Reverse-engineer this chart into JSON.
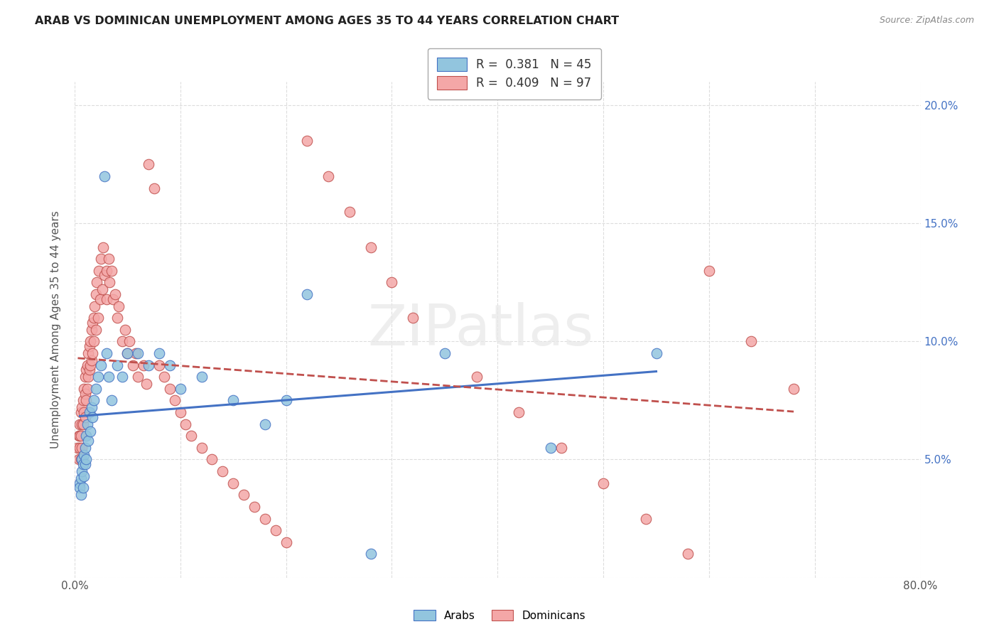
{
  "title": "ARAB VS DOMINICAN UNEMPLOYMENT AMONG AGES 35 TO 44 YEARS CORRELATION CHART",
  "source": "Source: ZipAtlas.com",
  "ylabel": "Unemployment Among Ages 35 to 44 years",
  "xlim": [
    0,
    0.8
  ],
  "ylim": [
    0,
    0.21
  ],
  "xtick_positions": [
    0.0,
    0.1,
    0.2,
    0.3,
    0.4,
    0.5,
    0.6,
    0.7,
    0.8
  ],
  "xticklabels": [
    "0.0%",
    "",
    "",
    "",
    "",
    "",
    "",
    "",
    "80.0%"
  ],
  "ytick_positions": [
    0.0,
    0.05,
    0.1,
    0.15,
    0.2
  ],
  "yticklabels_right": [
    "",
    "5.0%",
    "10.0%",
    "15.0%",
    "20.0%"
  ],
  "arab_color": "#92c5de",
  "arab_edge_color": "#4472c4",
  "dominican_color": "#f4a7a7",
  "dominican_edge_color": "#c0504d",
  "arab_line_color": "#4472c4",
  "dominican_line_color": "#c0504d",
  "arab_R": 0.381,
  "arab_N": 45,
  "dominican_R": 0.409,
  "dominican_N": 97,
  "legend_labels": [
    "Arabs",
    "Dominicans"
  ],
  "watermark": "ZIPatlas",
  "arab_x": [
    0.005,
    0.005,
    0.006,
    0.006,
    0.007,
    0.007,
    0.008,
    0.008,
    0.009,
    0.009,
    0.01,
    0.01,
    0.011,
    0.011,
    0.012,
    0.013,
    0.014,
    0.015,
    0.016,
    0.017,
    0.018,
    0.02,
    0.022,
    0.025,
    0.028,
    0.03,
    0.032,
    0.035,
    0.04,
    0.045,
    0.05,
    0.06,
    0.07,
    0.08,
    0.09,
    0.1,
    0.12,
    0.15,
    0.18,
    0.2,
    0.22,
    0.28,
    0.35,
    0.45,
    0.55
  ],
  "arab_y": [
    0.04,
    0.038,
    0.042,
    0.035,
    0.05,
    0.045,
    0.048,
    0.038,
    0.052,
    0.043,
    0.055,
    0.048,
    0.06,
    0.05,
    0.065,
    0.058,
    0.07,
    0.062,
    0.072,
    0.068,
    0.075,
    0.08,
    0.085,
    0.09,
    0.17,
    0.095,
    0.085,
    0.075,
    0.09,
    0.085,
    0.095,
    0.095,
    0.09,
    0.095,
    0.09,
    0.08,
    0.085,
    0.075,
    0.065,
    0.075,
    0.12,
    0.01,
    0.095,
    0.055,
    0.095
  ],
  "dominican_x": [
    0.003,
    0.004,
    0.004,
    0.005,
    0.005,
    0.005,
    0.006,
    0.006,
    0.006,
    0.007,
    0.007,
    0.007,
    0.008,
    0.008,
    0.009,
    0.009,
    0.01,
    0.01,
    0.01,
    0.011,
    0.011,
    0.012,
    0.012,
    0.013,
    0.013,
    0.014,
    0.014,
    0.015,
    0.015,
    0.016,
    0.016,
    0.017,
    0.017,
    0.018,
    0.018,
    0.019,
    0.02,
    0.02,
    0.021,
    0.022,
    0.023,
    0.024,
    0.025,
    0.026,
    0.027,
    0.028,
    0.03,
    0.03,
    0.032,
    0.033,
    0.035,
    0.036,
    0.038,
    0.04,
    0.042,
    0.045,
    0.048,
    0.05,
    0.052,
    0.055,
    0.058,
    0.06,
    0.065,
    0.068,
    0.07,
    0.075,
    0.08,
    0.085,
    0.09,
    0.095,
    0.1,
    0.105,
    0.11,
    0.12,
    0.13,
    0.14,
    0.15,
    0.16,
    0.17,
    0.18,
    0.19,
    0.2,
    0.22,
    0.24,
    0.26,
    0.28,
    0.3,
    0.32,
    0.38,
    0.42,
    0.46,
    0.5,
    0.54,
    0.58,
    0.6,
    0.64,
    0.68
  ],
  "dominican_y": [
    0.055,
    0.06,
    0.05,
    0.065,
    0.06,
    0.055,
    0.07,
    0.06,
    0.05,
    0.072,
    0.065,
    0.055,
    0.075,
    0.065,
    0.08,
    0.07,
    0.085,
    0.078,
    0.068,
    0.088,
    0.075,
    0.09,
    0.08,
    0.095,
    0.085,
    0.098,
    0.088,
    0.1,
    0.09,
    0.105,
    0.092,
    0.108,
    0.095,
    0.11,
    0.1,
    0.115,
    0.12,
    0.105,
    0.125,
    0.11,
    0.13,
    0.118,
    0.135,
    0.122,
    0.14,
    0.128,
    0.13,
    0.118,
    0.135,
    0.125,
    0.13,
    0.118,
    0.12,
    0.11,
    0.115,
    0.1,
    0.105,
    0.095,
    0.1,
    0.09,
    0.095,
    0.085,
    0.09,
    0.082,
    0.175,
    0.165,
    0.09,
    0.085,
    0.08,
    0.075,
    0.07,
    0.065,
    0.06,
    0.055,
    0.05,
    0.045,
    0.04,
    0.035,
    0.03,
    0.025,
    0.02,
    0.015,
    0.185,
    0.17,
    0.155,
    0.14,
    0.125,
    0.11,
    0.085,
    0.07,
    0.055,
    0.04,
    0.025,
    0.01,
    0.13,
    0.1,
    0.08
  ]
}
